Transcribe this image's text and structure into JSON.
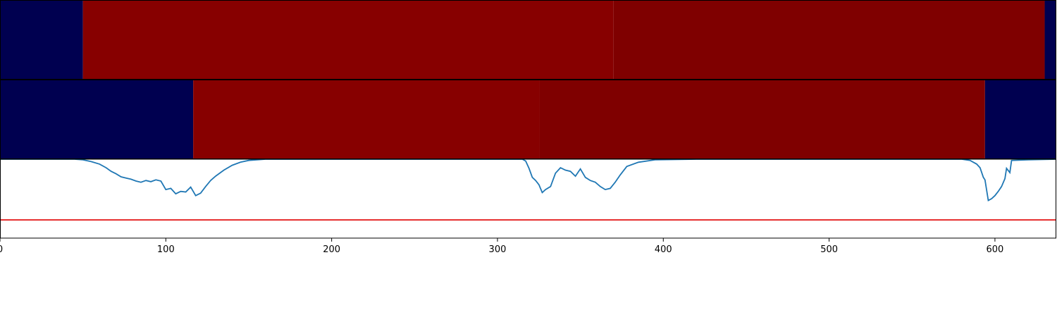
{
  "chart_data": [
    {
      "type": "heatmap",
      "title": "",
      "xlim": [
        0,
        637
      ],
      "colors": {
        "low": "#000050",
        "high_a": "#870000",
        "high_b": "#7f0000"
      },
      "segments": [
        {
          "start": 0,
          "end": 50,
          "level": "low"
        },
        {
          "start": 50,
          "end": 370,
          "level": "high_a"
        },
        {
          "start": 370,
          "end": 630,
          "level": "high_b"
        },
        {
          "start": 630,
          "end": 637,
          "level": "low"
        }
      ]
    },
    {
      "type": "heatmap",
      "title": "",
      "xlim": [
        0,
        637
      ],
      "colors": {
        "low": "#000050",
        "high_a": "#870000",
        "high_b": "#7f0000"
      },
      "segments": [
        {
          "start": 0,
          "end": 116.5,
          "level": "low"
        },
        {
          "start": 116.5,
          "end": 325.5,
          "level": "high_a"
        },
        {
          "start": 325.5,
          "end": 594,
          "level": "high_b"
        },
        {
          "start": 594,
          "end": 637,
          "level": "low"
        }
      ]
    },
    {
      "type": "line",
      "title": "",
      "xlabel": "",
      "ylabel": "",
      "xlim": [
        0,
        637
      ],
      "ylim": [
        -1.3,
        0.0
      ],
      "xticks": [
        "0",
        "100",
        "200",
        "300",
        "400",
        "500",
        "600"
      ],
      "grid": false,
      "colors": {
        "line": "#1f77b4",
        "threshold": "#e00000"
      },
      "threshold": -1.0,
      "x": [
        0,
        45,
        50,
        55,
        60,
        64,
        67,
        70,
        73,
        76,
        79,
        82,
        85,
        88,
        91,
        94,
        97,
        100,
        103,
        106,
        109,
        112,
        115,
        118,
        121,
        124,
        127,
        130,
        135,
        140,
        145,
        150,
        160,
        200,
        300,
        315,
        317,
        319,
        321,
        323,
        325,
        327,
        329,
        332,
        335,
        338,
        341,
        344,
        347,
        350,
        353,
        356,
        359,
        362,
        365,
        368,
        371,
        374,
        378,
        385,
        395,
        420,
        500,
        580,
        585,
        589,
        591,
        593,
        594,
        596,
        598,
        600,
        602,
        604,
        606,
        607,
        609,
        610,
        620,
        637
      ],
      "y": [
        0.0,
        0.0,
        -0.01,
        -0.04,
        -0.08,
        -0.14,
        -0.2,
        -0.24,
        -0.29,
        -0.31,
        -0.33,
        -0.36,
        -0.38,
        -0.35,
        -0.37,
        -0.34,
        -0.36,
        -0.5,
        -0.48,
        -0.57,
        -0.53,
        -0.54,
        -0.46,
        -0.6,
        -0.56,
        -0.45,
        -0.35,
        -0.28,
        -0.18,
        -0.1,
        -0.05,
        -0.02,
        0.0,
        0.0,
        0.0,
        0.0,
        -0.03,
        -0.15,
        -0.3,
        -0.35,
        -0.42,
        -0.55,
        -0.5,
        -0.45,
        -0.23,
        -0.14,
        -0.18,
        -0.2,
        -0.28,
        -0.16,
        -0.3,
        -0.35,
        -0.38,
        -0.45,
        -0.5,
        -0.48,
        -0.38,
        -0.26,
        -0.12,
        -0.05,
        -0.01,
        0.0,
        0.0,
        0.0,
        -0.02,
        -0.08,
        -0.14,
        -0.3,
        -0.34,
        -0.68,
        -0.65,
        -0.6,
        -0.53,
        -0.45,
        -0.32,
        -0.15,
        -0.22,
        -0.02,
        -0.01,
        0.0
      ]
    }
  ]
}
